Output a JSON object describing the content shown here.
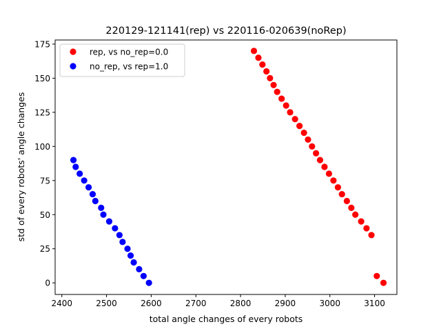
{
  "chart_data": {
    "type": "scatter",
    "title": "220129-121141(rep) vs 220116-020639(noRep)",
    "xlabel": "total angle changes of every robots",
    "ylabel": "std of every robots' angle changes",
    "xlim": [
      2385,
      3150
    ],
    "ylim": [
      -8.5,
      178
    ],
    "xticks": [
      2400,
      2500,
      2600,
      2700,
      2800,
      2900,
      3000,
      3100
    ],
    "yticks": [
      0,
      25,
      50,
      75,
      100,
      125,
      150,
      175
    ],
    "grid": false,
    "legend_position": "upper-left",
    "series": [
      {
        "name": "rep, vs no_rep=0.0",
        "color": "#ff0000",
        "points": [
          [
            2830,
            170
          ],
          [
            2840,
            165
          ],
          [
            2849,
            160
          ],
          [
            2858,
            155
          ],
          [
            2866,
            150
          ],
          [
            2874,
            145
          ],
          [
            2882,
            140
          ],
          [
            2892,
            135
          ],
          [
            2902,
            130
          ],
          [
            2911,
            125
          ],
          [
            2922,
            120
          ],
          [
            2932,
            115
          ],
          [
            2942,
            110
          ],
          [
            2951,
            105
          ],
          [
            2960,
            100
          ],
          [
            2969,
            95
          ],
          [
            2978,
            90
          ],
          [
            2988,
            85
          ],
          [
            2998,
            80
          ],
          [
            3008,
            75
          ],
          [
            3018,
            70
          ],
          [
            3027,
            65
          ],
          [
            3038,
            60
          ],
          [
            3048,
            55
          ],
          [
            3057,
            50
          ],
          [
            3070,
            45
          ],
          [
            3082,
            40
          ],
          [
            3093,
            35
          ],
          [
            3105,
            5
          ],
          [
            3120,
            0
          ]
        ]
      },
      {
        "name": "no_rep, vs rep=1.0",
        "color": "#0000ff",
        "points": [
          [
            2426,
            90
          ],
          [
            2431,
            85
          ],
          [
            2440,
            80
          ],
          [
            2450,
            75
          ],
          [
            2460,
            70
          ],
          [
            2469,
            65
          ],
          [
            2475,
            60
          ],
          [
            2488,
            55
          ],
          [
            2493,
            50
          ],
          [
            2506,
            45
          ],
          [
            2519,
            40
          ],
          [
            2529,
            35
          ],
          [
            2536,
            30
          ],
          [
            2547,
            25
          ],
          [
            2554,
            20
          ],
          [
            2561,
            15
          ],
          [
            2573,
            10
          ],
          [
            2583,
            5
          ],
          [
            2595,
            0
          ]
        ]
      }
    ]
  }
}
